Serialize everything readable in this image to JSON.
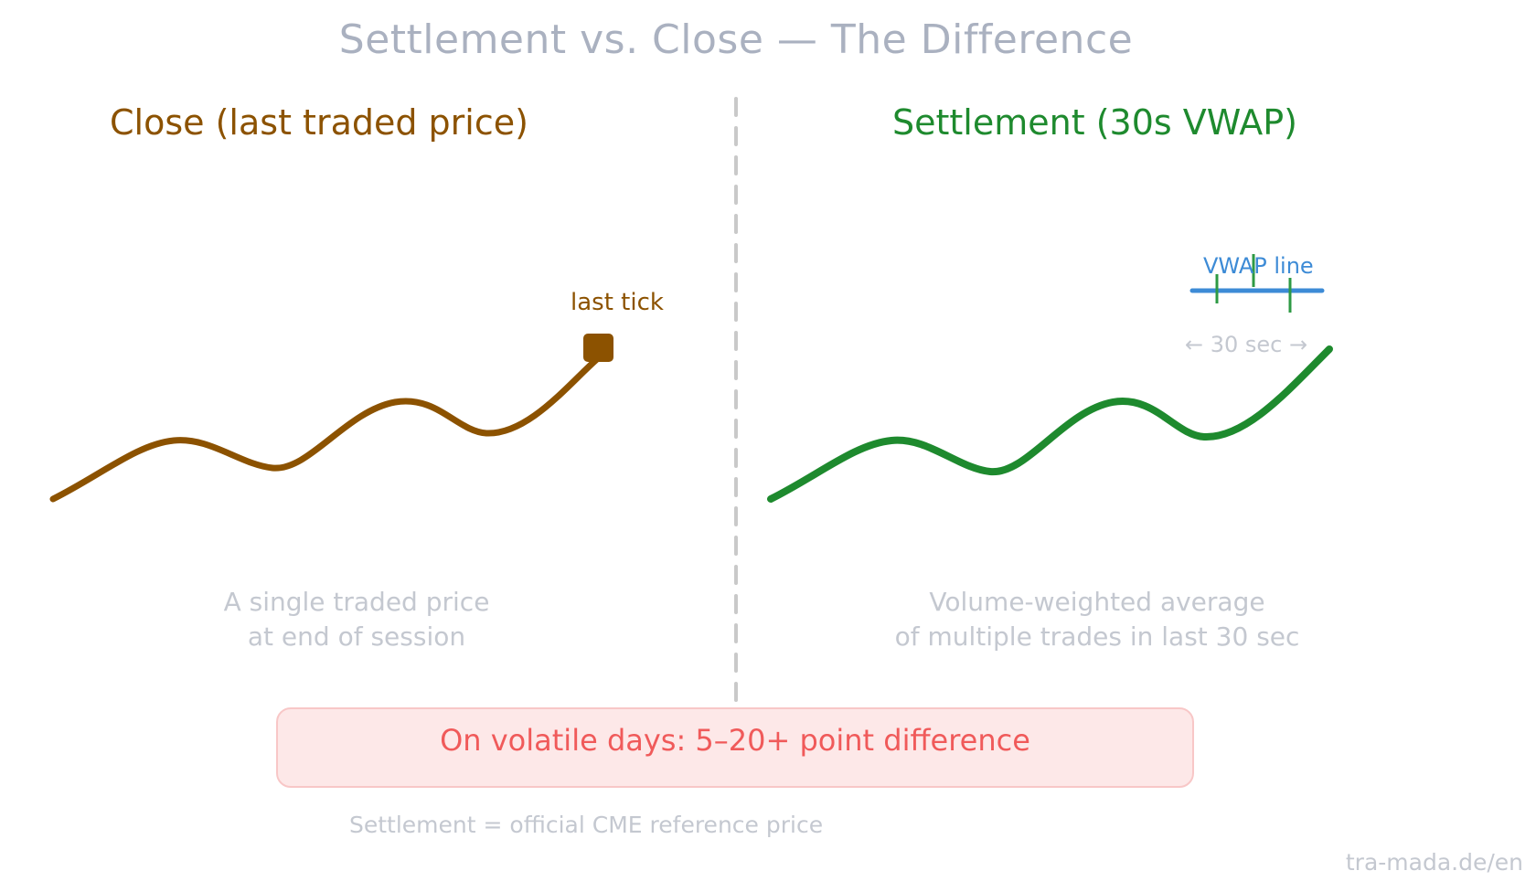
{
  "title": "Settlement vs. Close — The Difference",
  "left_panel": {
    "heading": "Close (last traded price)",
    "marker_label": "last tick",
    "caption_line1": "A single traded price",
    "caption_line2": "at end of session",
    "color": "#8c5200"
  },
  "right_panel": {
    "heading": "Settlement (30s VWAP)",
    "vwap_label": "VWAP line",
    "window_label": "← 30 sec →",
    "caption_line1": "Volume-weighted average",
    "caption_line2": "of multiple trades in last 30 sec",
    "color": "#1e8a2e",
    "vwap_color": "#3d8bd6"
  },
  "banner": {
    "text": "On volatile days: 5–20+ point difference",
    "text_color": "#f05a5a",
    "background": "#fde8e8"
  },
  "footnote": "Settlement = official CME reference price",
  "brand": "tra-mada.de/en"
}
